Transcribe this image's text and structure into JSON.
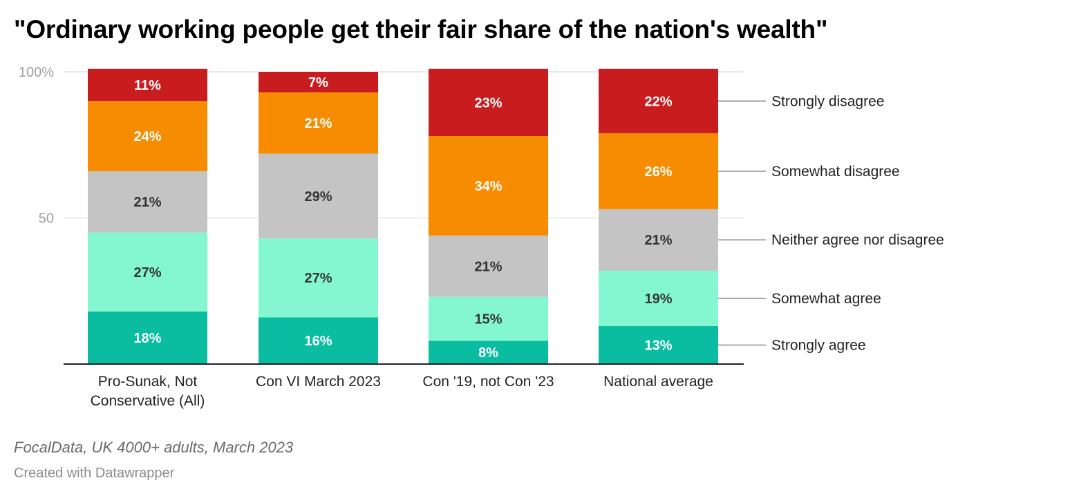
{
  "chart_data": {
    "type": "bar",
    "stacked": true,
    "title": "\"Ordinary working people get their fair share of the nation's wealth\"",
    "categories": [
      [
        "Pro-Sunak, Not",
        "Conservative (All)"
      ],
      [
        "Con VI March 2023"
      ],
      [
        "Con '19, not Con '23"
      ],
      [
        "National average"
      ]
    ],
    "series": [
      {
        "name": "Strongly agree",
        "color": "#0abda0",
        "values": [
          18,
          16,
          8,
          13
        ],
        "labels": [
          "18%",
          "16%",
          "8%",
          "13%"
        ]
      },
      {
        "name": "Somewhat agree",
        "color": "#84f7d1",
        "values": [
          27,
          27,
          15,
          19
        ],
        "labels": [
          "27%",
          "27%",
          "15%",
          "19%"
        ]
      },
      {
        "name": "Neither agree nor disagree",
        "color": "#c4c4c4",
        "values": [
          21,
          29,
          21,
          21
        ],
        "labels": [
          "21%",
          "29%",
          "21%",
          "21%"
        ]
      },
      {
        "name": "Somewhat disagree",
        "color": "#f78c00",
        "values": [
          24,
          21,
          34,
          26
        ],
        "labels": [
          "24%",
          "21%",
          "34%",
          "26%"
        ]
      },
      {
        "name": "Strongly disagree",
        "color": "#c81c1e",
        "values": [
          11,
          7,
          23,
          22
        ],
        "labels": [
          "11%",
          "7%",
          "23%",
          "22%"
        ]
      }
    ],
    "yticks": [
      {
        "value": 50,
        "label": "50"
      },
      {
        "value": 100,
        "label": "100%"
      }
    ],
    "ylim": [
      0,
      100
    ],
    "grid": true,
    "legend_position": "right, labels aligned to last bar"
  },
  "footer": {
    "source": "FocalData, UK 4000+ adults, March 2023",
    "credit": "Created with Datawrapper"
  }
}
